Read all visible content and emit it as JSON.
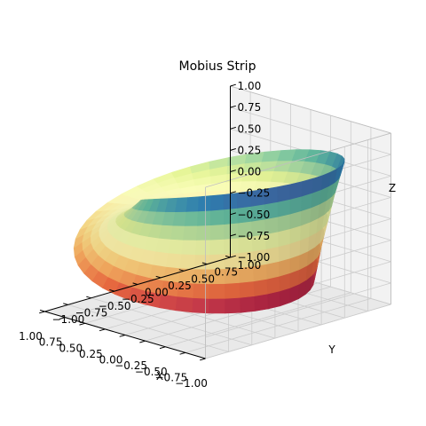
{
  "chart_data": {
    "type": "surface3d",
    "title": "Mobius Strip",
    "xlabel": "X",
    "ylabel": "Y",
    "zlabel": "Z",
    "xlim": [
      -1.0,
      1.0
    ],
    "ylim": [
      -1.0,
      1.0
    ],
    "zlim": [
      -1.0,
      1.0
    ],
    "x_ticks": [
      "−1.00",
      "−0.75",
      "−0.50",
      "−0.25",
      "0.00",
      "0.25",
      "0.50",
      "0.75",
      "1.00"
    ],
    "y_ticks": [
      "−1.00",
      "−0.75",
      "−0.50",
      "−0.25",
      "0.00",
      "0.25",
      "0.50",
      "0.75",
      "1.00"
    ],
    "z_ticks": [
      "−1.00",
      "−0.75",
      "−0.50",
      "−0.25",
      "0.00",
      "0.25",
      "0.50",
      "0.75",
      "1.00"
    ],
    "colormap": "Spectral",
    "grid": true,
    "pane_color": "#f2f2f2",
    "grid_color": "#cccccc",
    "surface": {
      "u_range": [
        0,
        6.2832
      ],
      "v_range": [
        -0.3,
        0.3
      ],
      "equation": "x = (1 + v*cos(u/2))*cos(u), y = (1 + v*cos(u/2))*sin(u), z = v*sin(u/2)"
    }
  }
}
